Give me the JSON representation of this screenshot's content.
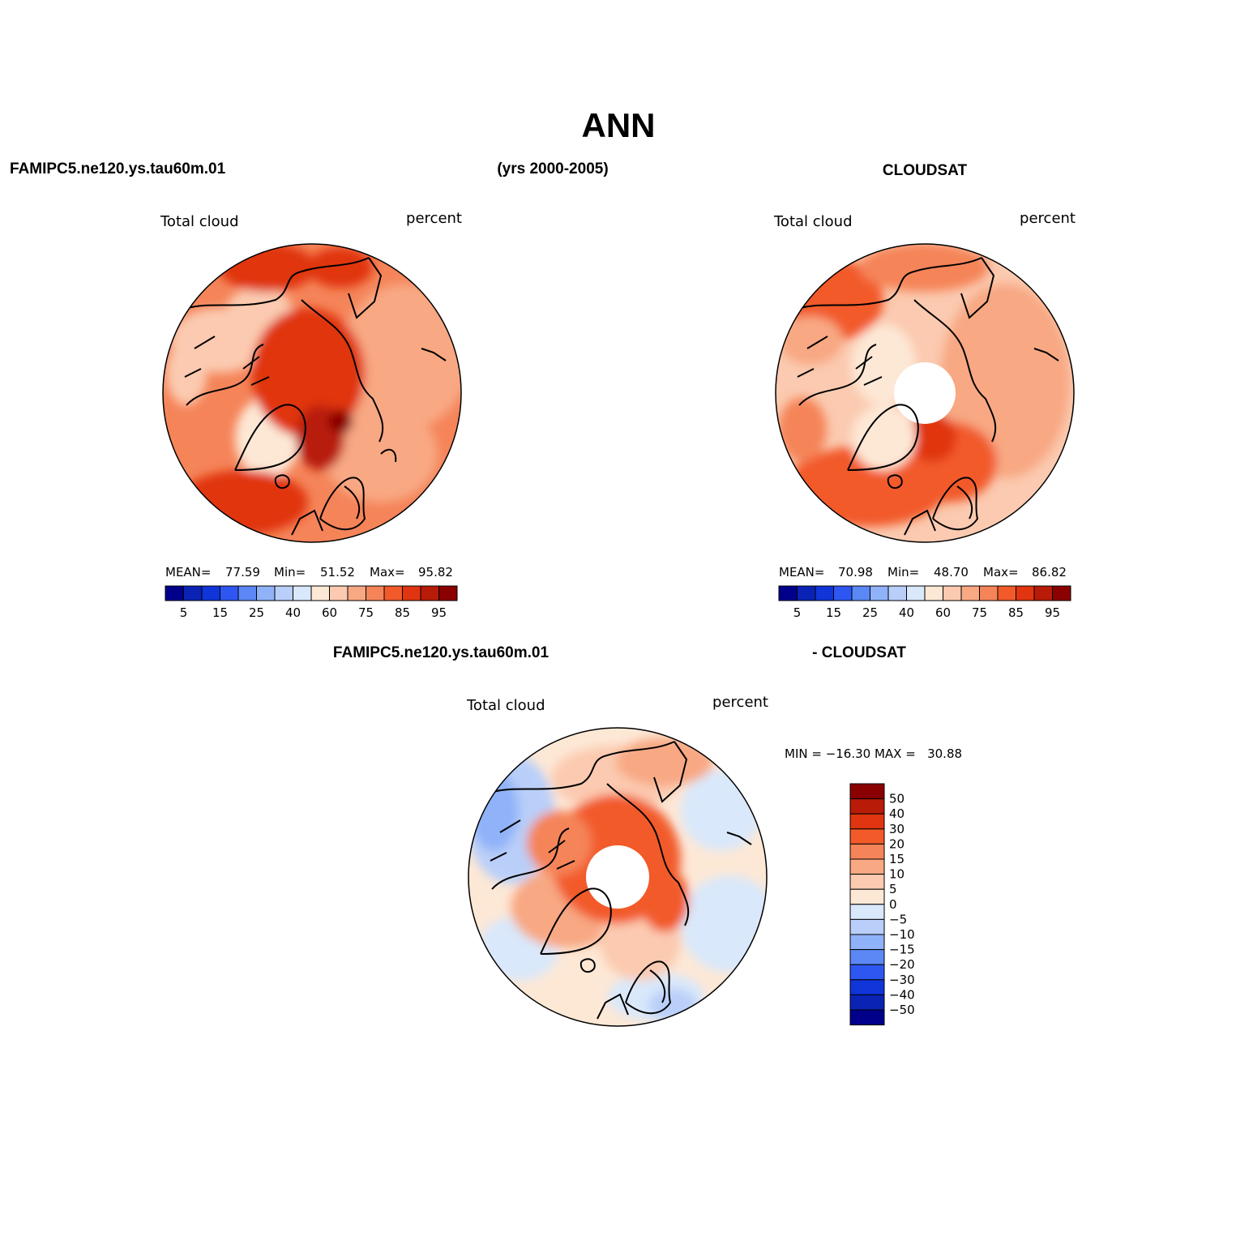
{
  "figure": {
    "title": "ANN",
    "period": "(yrs 2000-2005)",
    "colors": {
      "abs_scale": [
        "#00008b",
        "#0a23b5",
        "#1035d8",
        "#2e57f2",
        "#5b88f5",
        "#8fb2f8",
        "#b9cff9",
        "#d9e8fb",
        "#fde8d6",
        "#fbcab0",
        "#f8a883",
        "#f58459",
        "#f25a2a",
        "#e03510",
        "#b81c08",
        "#8b0000"
      ],
      "diff_scale": [
        "#00008b",
        "#0a23b5",
        "#1035d8",
        "#2e57f2",
        "#5b88f5",
        "#8fb2f8",
        "#b9cff9",
        "#d9e8fb",
        "#fde8d6",
        "#fbcab0",
        "#f8a883",
        "#f58459",
        "#f25a2a",
        "#e03510",
        "#b81c08",
        "#8b0000"
      ]
    }
  },
  "panels": [
    {
      "id": "model",
      "header": "FAMIPC5.ne120.ys.tau60m.01",
      "variable": "Total cloud",
      "units": "percent",
      "stats": {
        "mean_label": "MEAN=",
        "mean": "77.59",
        "min_label": "Min=",
        "min": "51.52",
        "max_label": "Max=",
        "max": "95.82"
      },
      "colorbar_ticks": [
        "5",
        "15",
        "25",
        "40",
        "60",
        "75",
        "85",
        "95"
      ]
    },
    {
      "id": "obs",
      "header": "CLOUDSAT",
      "variable": "Total cloud",
      "units": "percent",
      "stats": {
        "mean_label": "MEAN=",
        "mean": "70.98",
        "min_label": "Min=",
        "min": "48.70",
        "max_label": "Max=",
        "max": "86.82"
      },
      "colorbar_ticks": [
        "5",
        "15",
        "25",
        "40",
        "60",
        "75",
        "85",
        "95"
      ]
    },
    {
      "id": "diff",
      "header_left": "FAMIPC5.ne120.ys.tau60m.01",
      "header_right": "- CLOUDSAT",
      "variable": "Total cloud",
      "units": "percent",
      "stats_text": "MIN = −16.30 MAX =   30.88",
      "colorbar_ticks": [
        "50",
        "40",
        "30",
        "20",
        "15",
        "10",
        "5",
        "0",
        "−5",
        "−10",
        "−15",
        "−20",
        "−30",
        "−40",
        "−50"
      ]
    }
  ]
}
